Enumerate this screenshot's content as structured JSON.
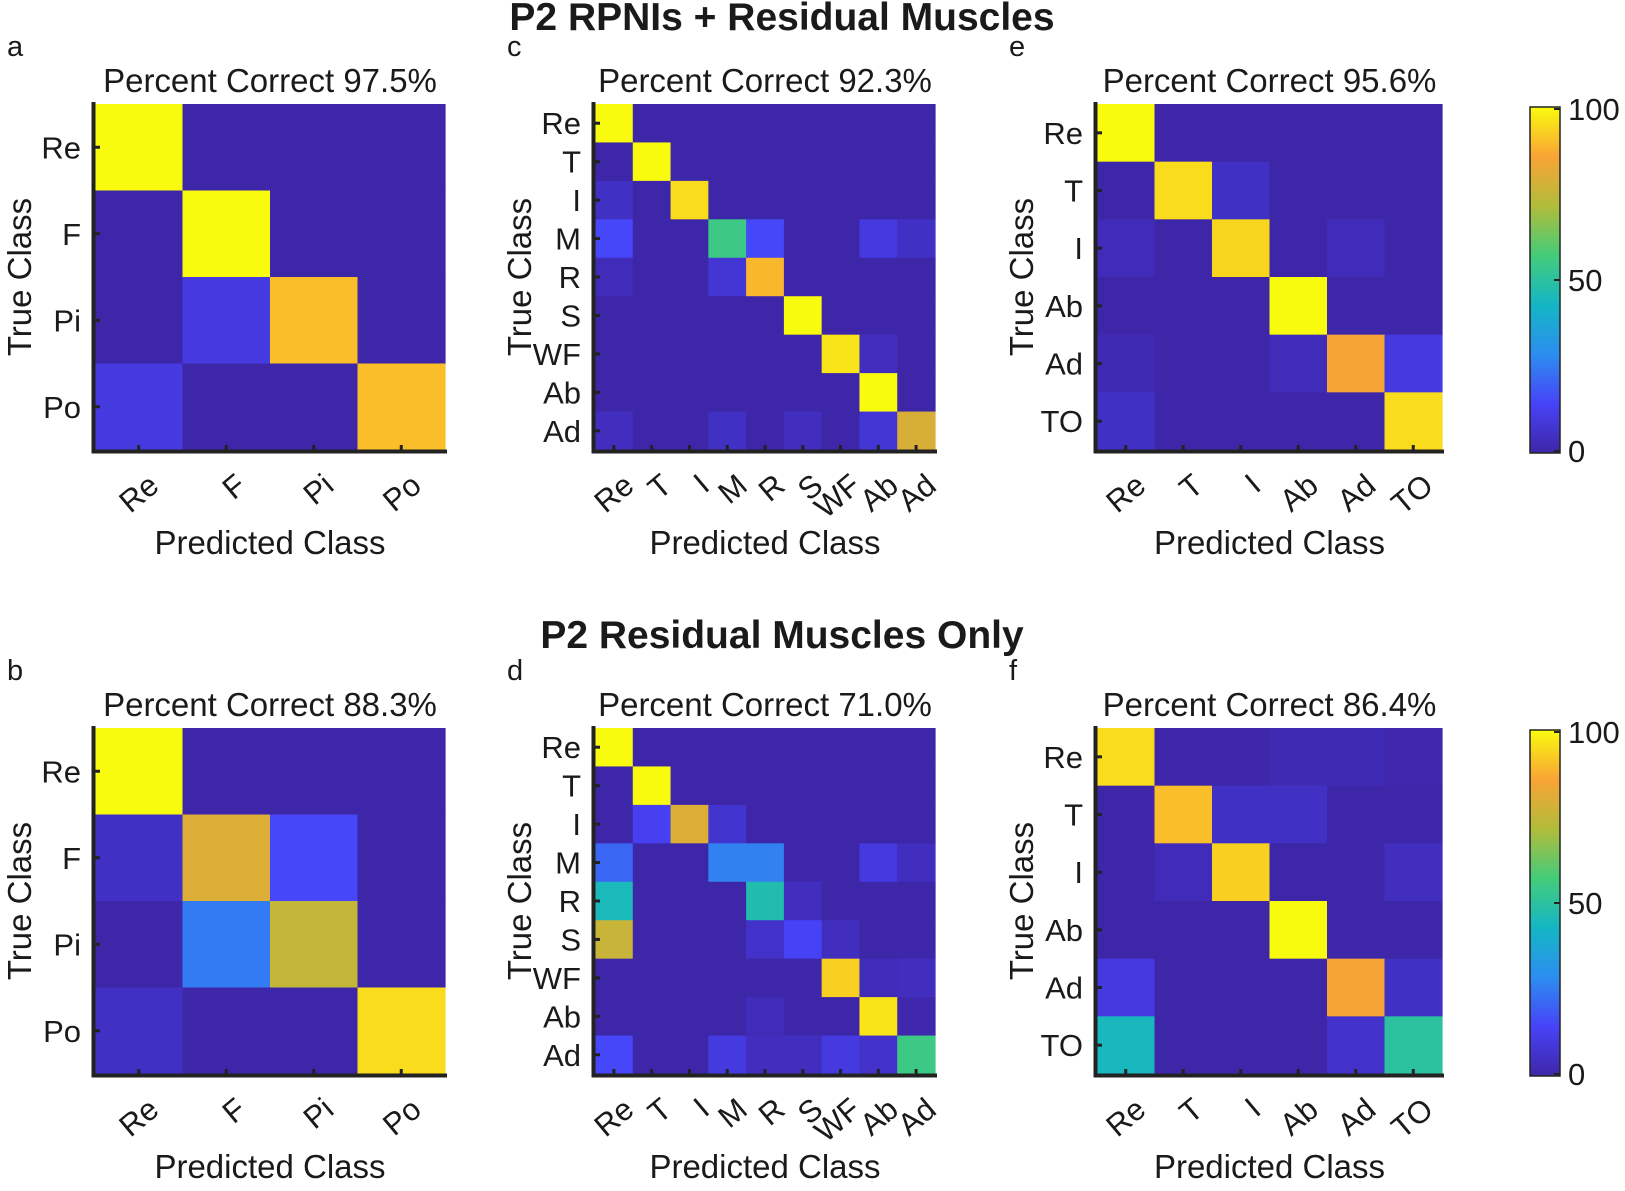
{
  "section_titles": [
    "P2 RPNIs + Residual Muscles",
    "P2 Residual Muscles Only"
  ],
  "colors": {
    "low": "#3526b8",
    "mid": "#14b6c4",
    "high": "#f9fb0e",
    "axis": "#222222",
    "colormap": [
      "#3e26a8",
      "#4743f8",
      "#2c8ef0",
      "#14b6c4",
      "#44cc7a",
      "#b1bc3a",
      "#f9a435",
      "#f9fb0e"
    ]
  },
  "colorbar": {
    "ticks": [
      "100",
      "50",
      "0"
    ],
    "range": [
      0,
      100
    ]
  },
  "chart_data": [
    {
      "type": "heatmap",
      "panel": "a",
      "section": 0,
      "title": "Percent Correct 97.5%",
      "xlabel": "Predicted Class",
      "ylabel": "True Class",
      "classes": [
        "Re",
        "F",
        "Pi",
        "Po"
      ],
      "values": [
        [
          100,
          0,
          0,
          0
        ],
        [
          0,
          100,
          0,
          0
        ],
        [
          0,
          10,
          90,
          0
        ],
        [
          10,
          0,
          0,
          90
        ]
      ]
    },
    {
      "type": "heatmap",
      "panel": "c",
      "section": 0,
      "title": "Percent Correct 92.3%",
      "xlabel": "Predicted Class",
      "ylabel": "True Class",
      "classes": [
        "Re",
        "T",
        "I",
        "M",
        "R",
        "S",
        "WF",
        "Ab",
        "Ad"
      ],
      "values": [
        [
          100,
          0,
          0,
          0,
          0,
          0,
          0,
          0,
          0
        ],
        [
          0,
          100,
          0,
          0,
          0,
          0,
          0,
          0,
          0
        ],
        [
          5,
          0,
          95,
          0,
          0,
          0,
          0,
          0,
          0
        ],
        [
          15,
          0,
          0,
          55,
          15,
          0,
          0,
          10,
          5
        ],
        [
          3,
          0,
          0,
          8,
          89,
          0,
          0,
          0,
          0
        ],
        [
          0,
          0,
          0,
          0,
          0,
          100,
          0,
          0,
          0
        ],
        [
          0,
          0,
          0,
          0,
          0,
          0,
          96,
          4,
          0
        ],
        [
          0,
          0,
          0,
          0,
          0,
          0,
          0,
          100,
          0
        ],
        [
          4,
          0,
          0,
          5,
          0,
          4,
          0,
          8,
          79
        ]
      ]
    },
    {
      "type": "heatmap",
      "panel": "e",
      "section": 0,
      "title": "Percent Correct 95.6%",
      "xlabel": "Predicted Class",
      "ylabel": "True Class",
      "classes": [
        "Re",
        "T",
        "I",
        "Ab",
        "Ad",
        "TO"
      ],
      "values": [
        [
          100,
          0,
          0,
          0,
          0,
          0
        ],
        [
          0,
          95,
          5,
          0,
          0,
          0
        ],
        [
          3,
          0,
          94,
          0,
          3,
          0
        ],
        [
          0,
          0,
          0,
          100,
          0,
          0
        ],
        [
          2,
          0,
          0,
          3,
          85,
          10
        ],
        [
          5,
          0,
          0,
          0,
          0,
          95
        ]
      ]
    },
    {
      "type": "heatmap",
      "panel": "b",
      "section": 1,
      "title": "Percent Correct 88.3%",
      "xlabel": "Predicted Class",
      "ylabel": "True Class",
      "classes": [
        "Re",
        "F",
        "Pi",
        "Po"
      ],
      "values": [
        [
          100,
          0,
          0,
          0
        ],
        [
          5,
          80,
          15,
          0
        ],
        [
          0,
          25,
          75,
          0
        ],
        [
          5,
          0,
          0,
          95
        ]
      ]
    },
    {
      "type": "heatmap",
      "panel": "d",
      "section": 1,
      "title": "Percent Correct 71.0%",
      "xlabel": "Predicted Class",
      "ylabel": "True Class",
      "classes": [
        "Re",
        "T",
        "I",
        "M",
        "R",
        "S",
        "WF",
        "Ab",
        "Ad"
      ],
      "values": [
        [
          100,
          0,
          0,
          0,
          0,
          0,
          0,
          0,
          0
        ],
        [
          0,
          100,
          0,
          0,
          0,
          0,
          0,
          0,
          0
        ],
        [
          0,
          13,
          80,
          7,
          0,
          0,
          0,
          0,
          0
        ],
        [
          21,
          0,
          0,
          26,
          26,
          0,
          0,
          10,
          4
        ],
        [
          45,
          0,
          0,
          0,
          47,
          4,
          0,
          0,
          0
        ],
        [
          76,
          0,
          0,
          0,
          6,
          14,
          4,
          0,
          0
        ],
        [
          0,
          0,
          0,
          0,
          0,
          0,
          93,
          3,
          4
        ],
        [
          0,
          0,
          0,
          0,
          3,
          0,
          0,
          96,
          1
        ],
        [
          15,
          0,
          0,
          10,
          4,
          4,
          10,
          6,
          55
        ]
      ]
    },
    {
      "type": "heatmap",
      "panel": "f",
      "section": 1,
      "title": "Percent Correct 86.4%",
      "xlabel": "Predicted Class",
      "ylabel": "True Class",
      "classes": [
        "Re",
        "T",
        "I",
        "Ab",
        "Ad",
        "TO"
      ],
      "values": [
        [
          95,
          0,
          0,
          2,
          2,
          1
        ],
        [
          0,
          90,
          5,
          5,
          0,
          0
        ],
        [
          0,
          3,
          93,
          0,
          0,
          4
        ],
        [
          0,
          0,
          0,
          100,
          0,
          0
        ],
        [
          10,
          0,
          0,
          0,
          85,
          5
        ],
        [
          44,
          0,
          0,
          0,
          6,
          50
        ]
      ]
    }
  ]
}
